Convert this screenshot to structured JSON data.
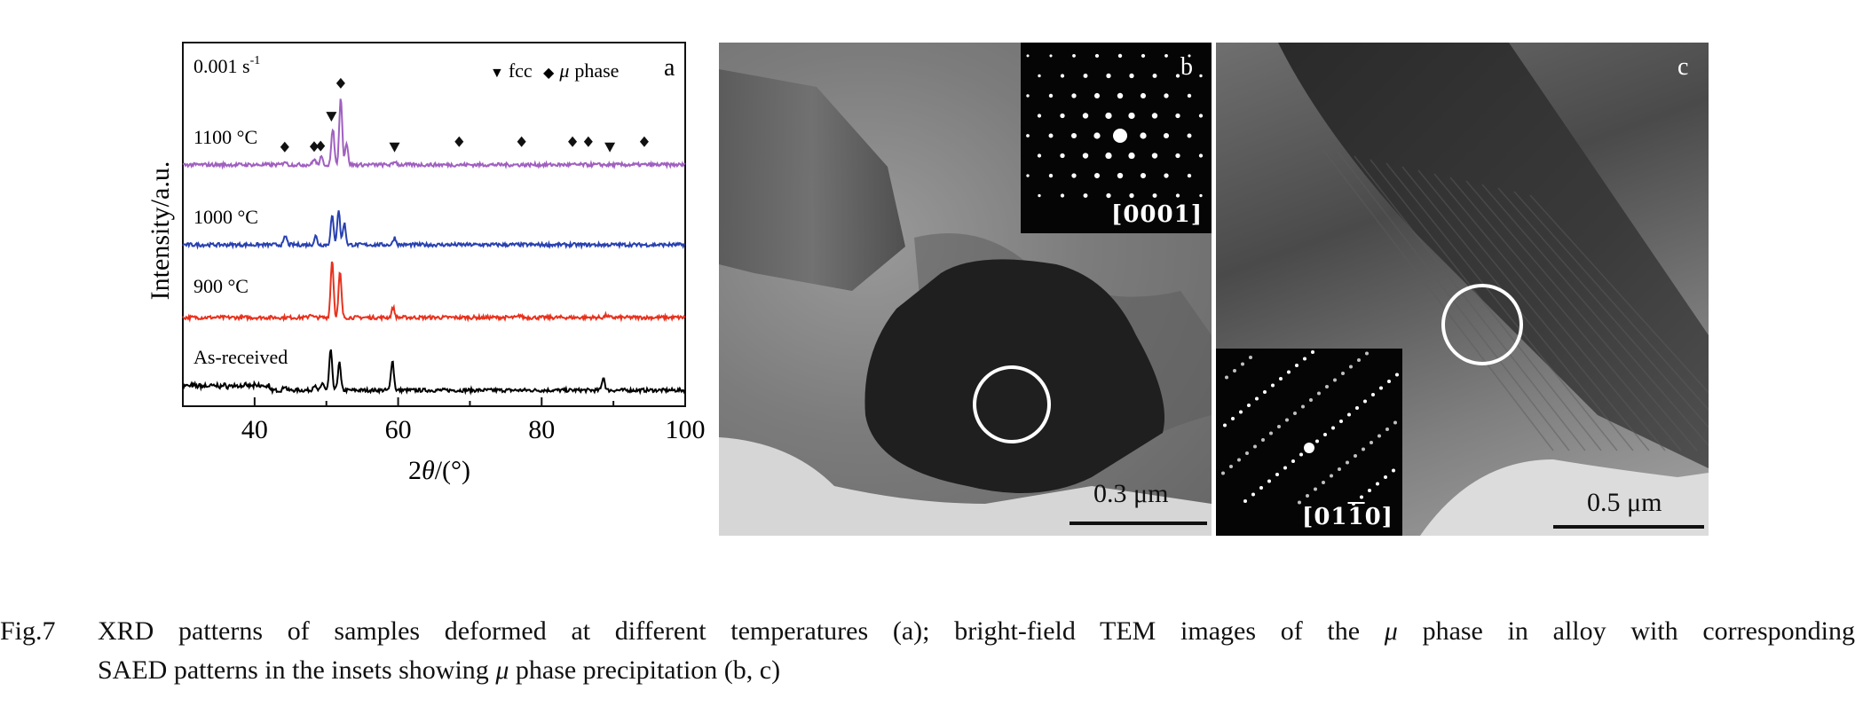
{
  "chart_data": {
    "type": "line",
    "panel_label": "a",
    "strain_rate": "0.001 s",
    "strain_rate_exponent": "-1",
    "xlabel_prefix": "2",
    "xlabel_theta": "θ",
    "xlabel_suffix": "/(°)",
    "ylabel": "Intensity/a.u.",
    "xlim": [
      30,
      100
    ],
    "x_ticks": [
      "40",
      "60",
      "80",
      "100"
    ],
    "legend": {
      "fcc_symbol": "▼",
      "fcc_label": "fcc",
      "mu_symbol": "◆",
      "mu_greek": "μ",
      "mu_label": "phase"
    },
    "series": [
      {
        "name": "As-received",
        "color": "#000000",
        "baseline": 0.0,
        "peaks": [
          [
            44.2,
            0.06
          ],
          [
            48.3,
            0.07
          ],
          [
            49.5,
            0.1
          ],
          [
            50.6,
            0.55
          ],
          [
            51.8,
            0.38
          ],
          [
            59.2,
            0.42
          ],
          [
            88.6,
            0.18
          ]
        ]
      },
      {
        "name": "900 °C",
        "color": "#e8321e",
        "baseline": 1.0,
        "peaks": [
          [
            47.8,
            0.05
          ],
          [
            50.8,
            0.8
          ],
          [
            51.9,
            0.62
          ],
          [
            59.3,
            0.14
          ],
          [
            77.0,
            0.03
          ],
          [
            89.0,
            0.03
          ]
        ]
      },
      {
        "name": "1000 °C",
        "color": "#2841b0",
        "baseline": 2.0,
        "peaks": [
          [
            44.3,
            0.12
          ],
          [
            48.5,
            0.12
          ],
          [
            50.8,
            0.4
          ],
          [
            51.7,
            0.48
          ],
          [
            52.5,
            0.3
          ],
          [
            59.5,
            0.1
          ]
        ]
      },
      {
        "name": "1100 °C",
        "color": "#a060c0",
        "baseline": 3.1,
        "peaks": [
          [
            44.2,
            0.05
          ],
          [
            48.3,
            0.08
          ],
          [
            49.3,
            0.1
          ],
          [
            50.9,
            0.5
          ],
          [
            52.0,
            0.95
          ],
          [
            52.8,
            0.3
          ],
          [
            59.6,
            0.05
          ]
        ]
      }
    ],
    "fcc_markers": [
      50.7,
      59.5,
      89.5
    ],
    "mu_markers": [
      44.2,
      48.3,
      49.2,
      52.0,
      68.5,
      77.2,
      84.3,
      86.5,
      94.3
    ]
  },
  "panel_b": {
    "label": "b",
    "inset_zone": "[0001]",
    "scale_bar": "0.3 μm"
  },
  "panel_c": {
    "label": "c",
    "inset_zone_pre": "[01",
    "inset_zone_bar": "1",
    "inset_zone_post": "0]",
    "scale_bar": "0.5 μm"
  },
  "caption": {
    "fig": "Fig.7",
    "line1_a": "XRD patterns of samples deformed at different temperatures (a); bright-field TEM images of the ",
    "mu": "μ",
    "line1_b": " phase in alloy with corresponding",
    "line2_a": "SAED patterns in the insets showing ",
    "line2_b": " phase precipitation (b, c)"
  }
}
